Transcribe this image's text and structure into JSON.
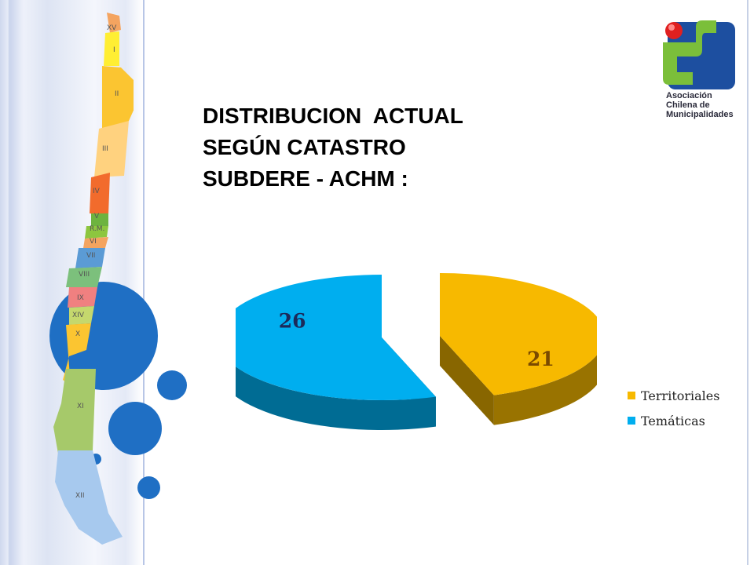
{
  "slide": {
    "title_lines": [
      "DISTRIBUCION  ACTUAL",
      "SEGÚN CATASTRO",
      "SUBDERE - ACHM :"
    ]
  },
  "logo": {
    "text_lines": [
      "Asociación",
      "Chilena de",
      "Municipalidades"
    ],
    "colors": {
      "red": "#e02020",
      "green": "#7bbf3a",
      "blue": "#1d4fa0"
    }
  },
  "map": {
    "region_labels": [
      "XV",
      "I",
      "II",
      "III",
      "IV",
      "V",
      "R.M.",
      "VI",
      "VII",
      "VIII",
      "IX",
      "XIV",
      "X",
      "XI",
      "XII"
    ]
  },
  "chart_data": {
    "type": "pie",
    "style": "3d-exploded",
    "series": [
      {
        "values": [
          21,
          26
        ],
        "categories": [
          "Territoriales",
          "Temáticas"
        ],
        "colors": [
          "#f7b900",
          "#00aeef"
        ],
        "data_labels": [
          "21",
          "26"
        ]
      }
    ],
    "legend": {
      "position": "right",
      "entries": [
        "Territoriales",
        "Temáticas"
      ]
    }
  }
}
